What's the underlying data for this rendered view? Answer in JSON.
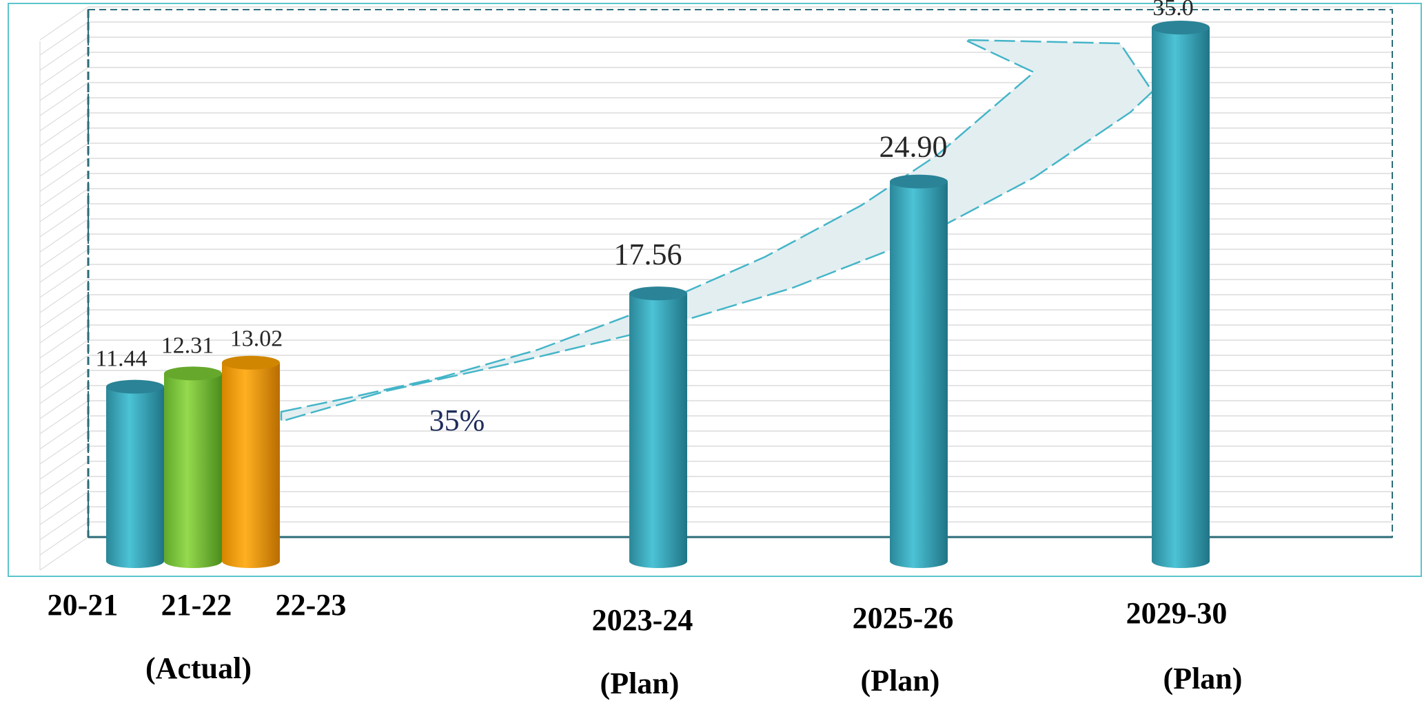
{
  "chart_data": {
    "type": "bar",
    "title": "",
    "xlabel": "",
    "ylabel": "",
    "ylim": [
      0,
      35
    ],
    "grid": true,
    "categories": [
      "20-21",
      "21-22",
      "22-23",
      "2023-24",
      "2025-26",
      "2029-30"
    ],
    "values": [
      11.44,
      12.31,
      13.02,
      17.56,
      24.9,
      35.0
    ],
    "value_labels": [
      "11.44",
      "12.31",
      "13.02",
      "17.56",
      "24.90",
      "35.0"
    ],
    "bar_colors": [
      "#3aa9bd",
      "#7ec63a",
      "#f4a000",
      "#3aa9bd",
      "#3aa9bd",
      "#3aa9bd"
    ],
    "group_labels": [
      "(Actual)",
      "(Plan)",
      "(Plan)",
      "(Plan)"
    ],
    "annotations": [
      {
        "text": "35%"
      }
    ]
  },
  "colors": {
    "frame": "#5bc4cc",
    "axis": "#2b6b78",
    "grid": "#dcdcdc",
    "arrow_stroke": "#44b5c8",
    "arrow_fill": "#e3eef1"
  }
}
